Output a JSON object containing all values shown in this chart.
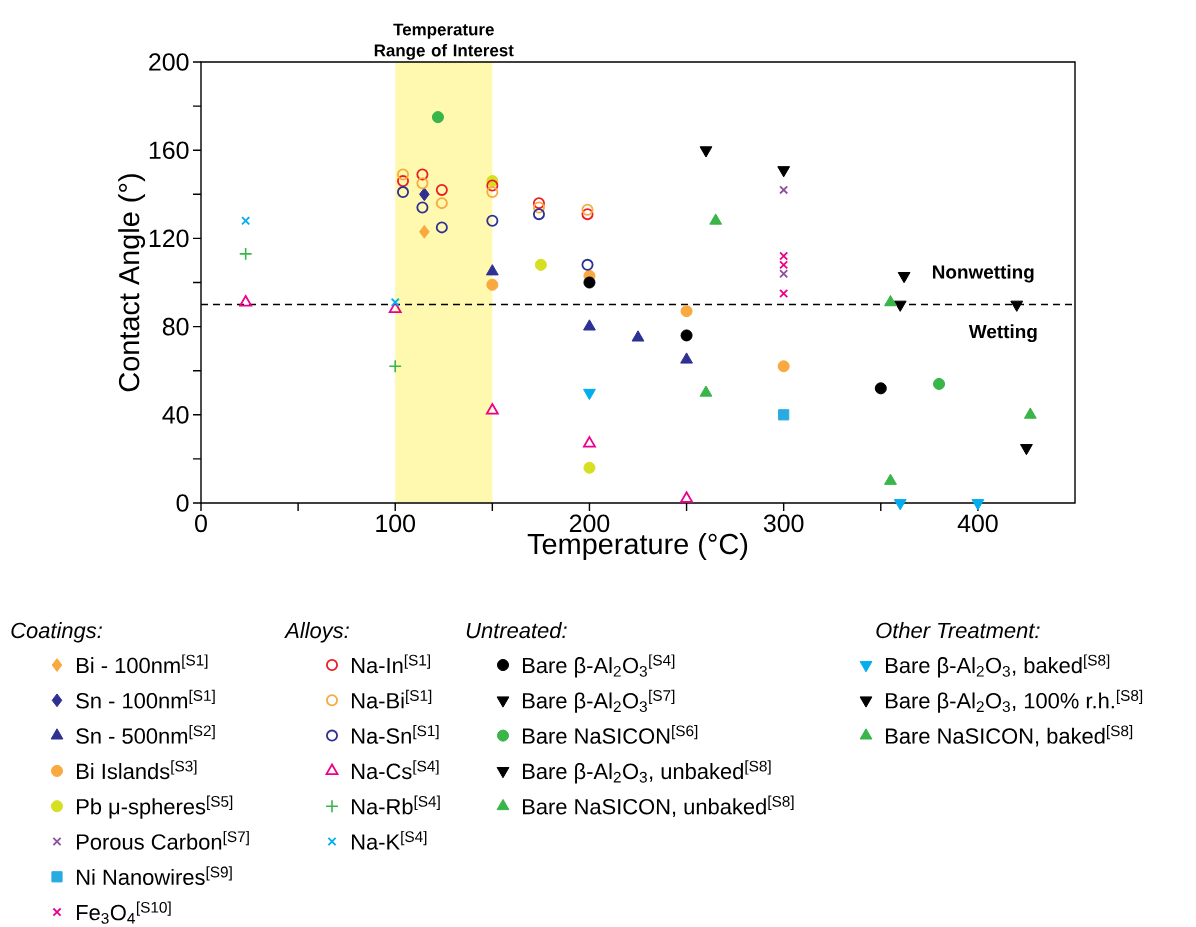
{
  "chart_data": {
    "type": "scatter",
    "xlabel": "Temperature (°C)",
    "ylabel": "Contact Angle (°)",
    "xlim": [
      0,
      450
    ],
    "ylim": [
      0,
      200
    ],
    "xticks": [
      0,
      {
        "value": 50,
        "label": null
      },
      100,
      {
        "value": 150,
        "label": null
      },
      200,
      {
        "value": 250,
        "label": null
      },
      300,
      {
        "value": 350,
        "label": null
      },
      400
    ],
    "yticks": [
      0,
      {
        "value": 20,
        "label": null
      },
      40,
      {
        "value": 60,
        "label": null
      },
      80,
      {
        "value": 100,
        "label": null
      },
      120,
      {
        "value": 140,
        "label": null
      },
      160,
      {
        "value": 180,
        "label": null
      },
      200
    ],
    "grid": false,
    "legend": "bottom",
    "bands": [
      {
        "axis": "x",
        "from": 100,
        "to": 150,
        "label": "Temperature Range of Interest",
        "color": "#fff9b0"
      }
    ],
    "ref_lines": [
      {
        "axis": "y",
        "value": 90,
        "color": "#000000",
        "line_style": "dashed"
      }
    ],
    "annotations": [
      "Nonwetting",
      "Wetting",
      "Coatings:",
      "Alloys:",
      "Untreated:",
      "Other Treatment:"
    ],
    "series": [
      {
        "name": "Bi - 100nm$^{[S1]}$",
        "color": "#f9a93f",
        "marker": "diamond",
        "x": [
          115
        ],
        "values": [
          123
        ]
      },
      {
        "name": "Sn - 100nm$^{[S1]}$",
        "color": "#2e3192",
        "marker": "diamond",
        "x": [
          115
        ],
        "values": [
          140
        ]
      },
      {
        "name": "Sn - 500nm$^{[S2]}$",
        "color": "#2e3192",
        "marker": "triangle",
        "x": [
          150,
          200,
          225,
          250
        ],
        "values": [
          105,
          80,
          75,
          65
        ]
      },
      {
        "name": "Bi Islands$^{[S3]}$",
        "color": "#f9a93f",
        "marker": "circle",
        "x": [
          150,
          200,
          250,
          300
        ],
        "values": [
          99,
          103,
          87,
          62
        ]
      },
      {
        "name": "Pb μ-spheres$^{[S5]}$",
        "color": "#d7df23",
        "marker": "circle",
        "x": [
          150,
          175,
          200
        ],
        "values": [
          146,
          108,
          16
        ]
      },
      {
        "name": "Porous Carbon$^{[S7]}$",
        "color": "#8e4fa0",
        "marker": "cross",
        "x": [
          300,
          300
        ],
        "values": [
          142,
          104
        ]
      },
      {
        "name": "Ni Nanowires$^{[S9]}$",
        "color": "#29abe2",
        "marker": "square",
        "x": [
          300
        ],
        "values": [
          40
        ]
      },
      {
        "name": "Fe$_{3}$O$_{4}$$^{[S10]}$",
        "color": "#ec008c",
        "marker": "cross",
        "x": [
          300,
          300,
          300
        ],
        "values": [
          112,
          108,
          95
        ]
      },
      {
        "name": "Na-In$^{[S1]}$",
        "color": "#ed1c24",
        "marker": "circle-open",
        "x": [
          104,
          114,
          124,
          150,
          174,
          199
        ],
        "values": [
          146,
          149,
          142,
          144,
          136,
          131
        ]
      },
      {
        "name": "Na-Bi$^{[S1]}$",
        "color": "#f9a93f",
        "marker": "circle-open",
        "x": [
          104,
          114,
          124,
          150,
          174,
          199
        ],
        "values": [
          149,
          145,
          136,
          141,
          134,
          133
        ]
      },
      {
        "name": "Na-Sn$^{[S1]}$",
        "color": "#2e3192",
        "marker": "circle-open",
        "x": [
          104,
          114,
          124,
          150,
          174,
          199
        ],
        "values": [
          141,
          134,
          125,
          128,
          131,
          108
        ]
      },
      {
        "name": "Na-Cs$^{[S4]}$",
        "color": "#ec008c",
        "marker": "triangle-open",
        "x": [
          23,
          100,
          150,
          200,
          250
        ],
        "values": [
          91,
          88,
          42,
          27,
          2
        ]
      },
      {
        "name": "Na-Rb$^{[S4]}$",
        "color": "#39b54a",
        "marker": "plus",
        "x": [
          23,
          100
        ],
        "values": [
          113,
          62
        ]
      },
      {
        "name": "Na-K$^{[S4]}$",
        "color": "#00aeef",
        "marker": "cross",
        "x": [
          23,
          100
        ],
        "values": [
          128,
          91
        ]
      },
      {
        "name": "Bare β-Al$_{2}$O$_{3}$$^{[S4]}$",
        "color": "#000000",
        "marker": "circle",
        "x": [
          200,
          250,
          350
        ],
        "values": [
          100,
          76,
          52
        ]
      },
      {
        "name": "Bare β-Al$_{2}$O$_{3}$$^{[S7]}$",
        "color": "#000000",
        "marker": "triangle-down",
        "x": [
          300
        ],
        "values": [
          151
        ]
      },
      {
        "name": "Bare NaSICON$^{[S6]}$",
        "color": "#39b54a",
        "marker": "circle",
        "x": [
          122,
          380
        ],
        "values": [
          175,
          54
        ]
      },
      {
        "name": "Bare β-Al$_{2}$O$_{3}$, unbaked$^{[S8]}$",
        "color": "#000000",
        "marker": "triangle-down",
        "x": [
          260,
          360,
          425
        ],
        "values": [
          160,
          90,
          25
        ]
      },
      {
        "name": "Bare NaSICON, unbaked$^{[S8]}$",
        "color": "#39b54a",
        "marker": "triangle",
        "x": [
          265,
          355,
          427
        ],
        "values": [
          128,
          91,
          40
        ]
      },
      {
        "name": "Bare β-Al$_{2}$O$_{3}$, baked$^{[S8]}$",
        "color": "#00aeef",
        "marker": "triangle-down",
        "x": [
          200,
          360,
          400
        ],
        "values": [
          50,
          0,
          0
        ]
      },
      {
        "name": "Bare β-Al$_{2}$O$_{3}$, 100% r.h.$^{[S8]}$",
        "color": "#000000",
        "marker": "triangle-down",
        "x": [
          362,
          420
        ],
        "values": [
          103,
          90
        ]
      },
      {
        "name": "Bare NaSICON, baked$^{[S8]}$",
        "color": "#39b54a",
        "marker": "triangle",
        "x": [
          260,
          355
        ],
        "values": [
          50,
          10
        ]
      }
    ]
  }
}
